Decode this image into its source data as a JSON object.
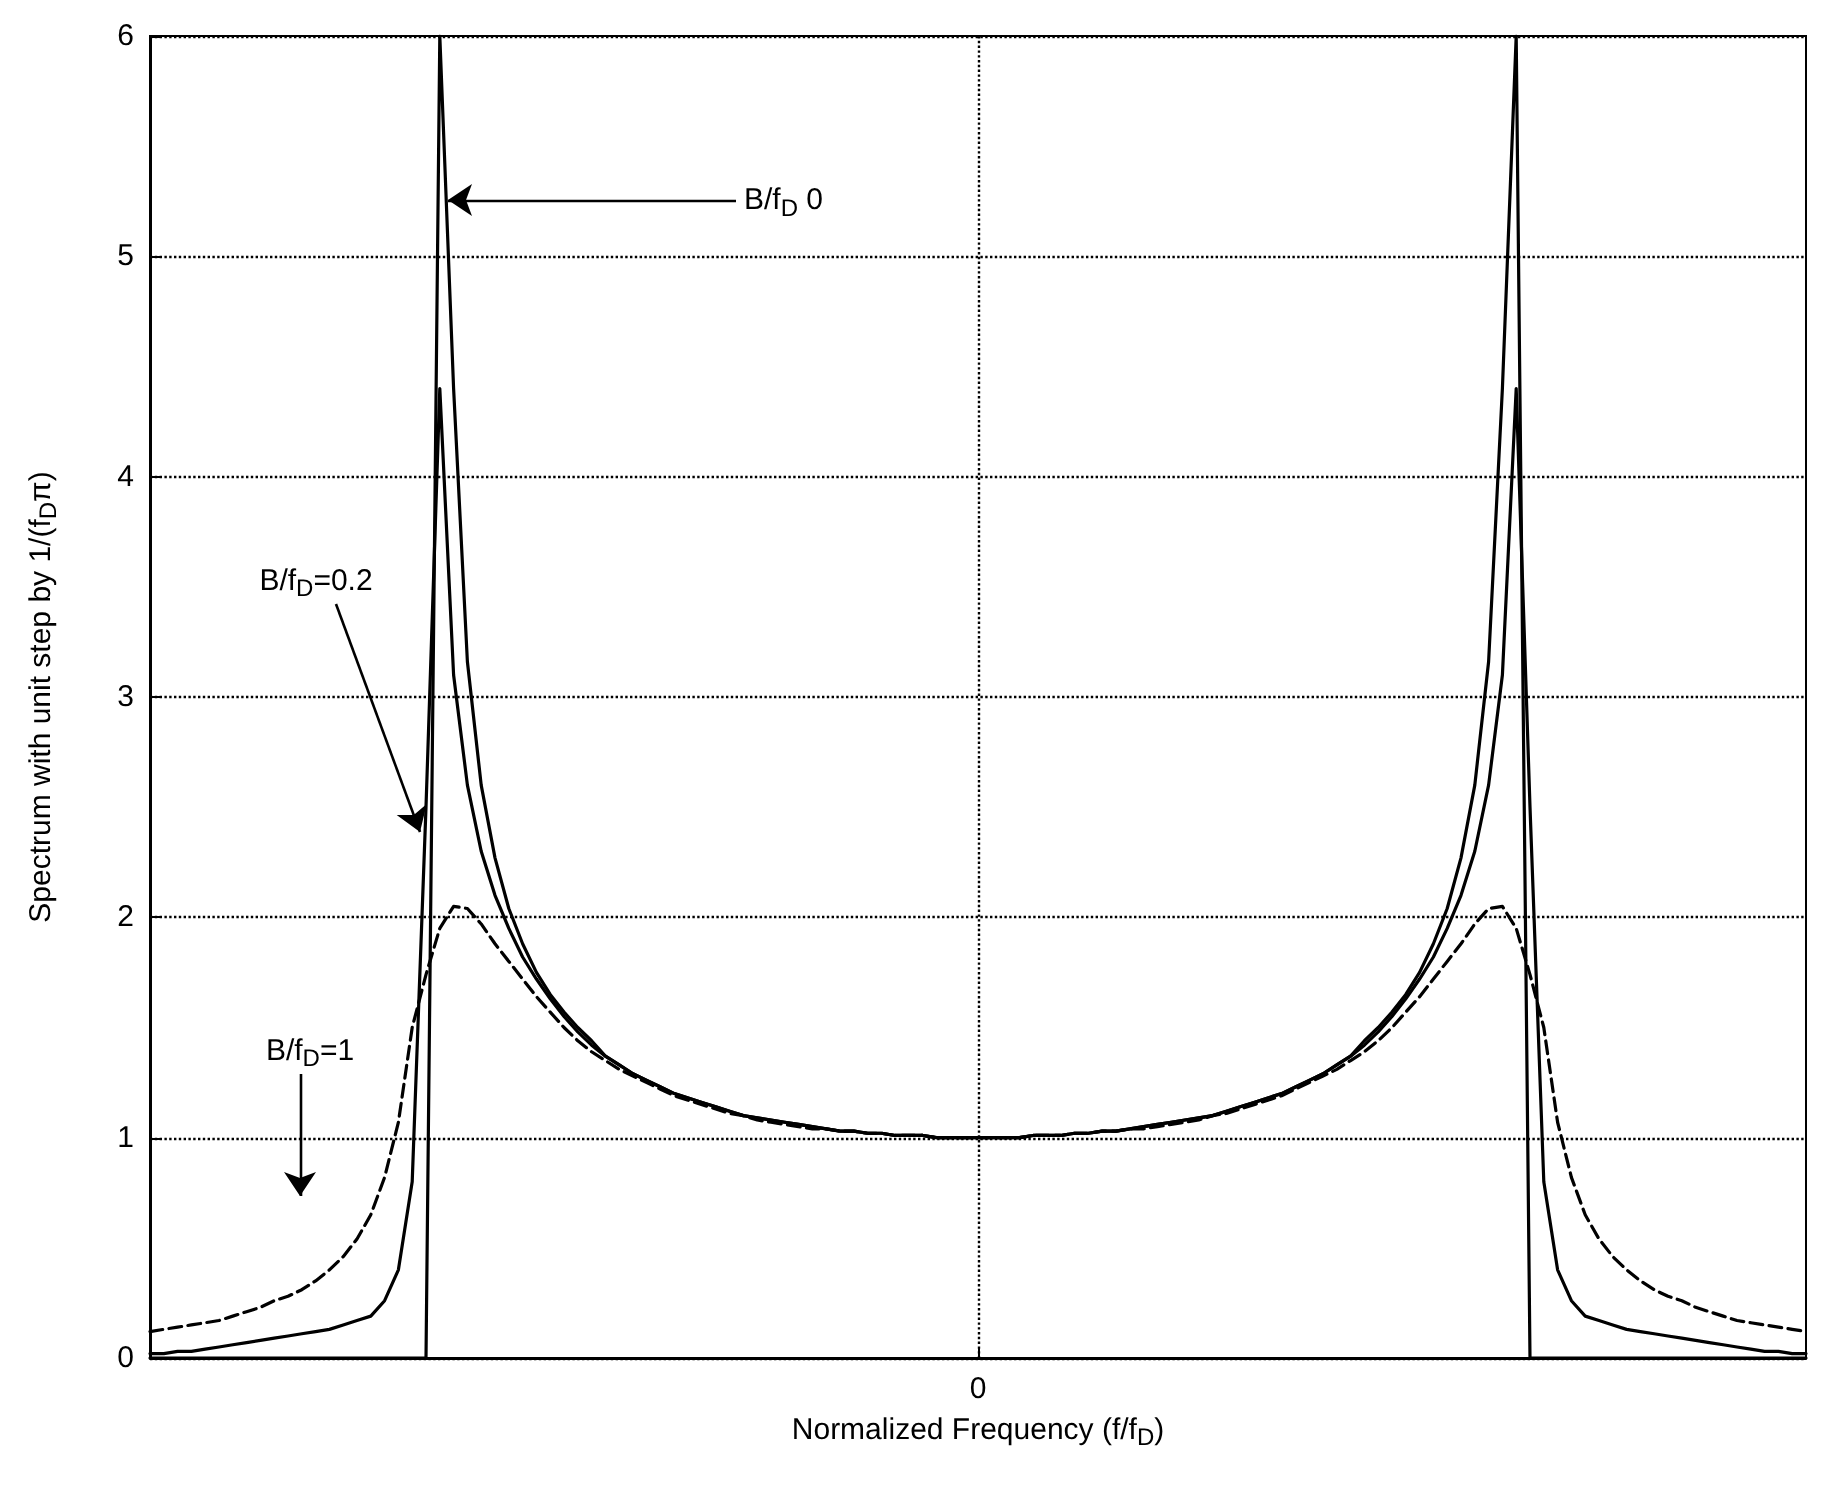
{
  "chart_data": {
    "type": "line",
    "xlabel": "Normalized Frequency (f/f$_{D}$)",
    "ylabel": "Spectrum with unit step by 1/(f$_{D}$π)",
    "categories": [
      null,
      null,
      null,
      null,
      null,
      null,
      null,
      null,
      null,
      null,
      null,
      null,
      null,
      null,
      null,
      null,
      null,
      null,
      null,
      null,
      null,
      null,
      null,
      null,
      null,
      null,
      null,
      null,
      null,
      null,
      null,
      null,
      null,
      null,
      null,
      null,
      null,
      null,
      null,
      null,
      null,
      null,
      null,
      null,
      null,
      null,
      null,
      null,
      null,
      null,
      null,
      null,
      null,
      null,
      null,
      null,
      null,
      null,
      null,
      null,
      "0",
      null,
      null,
      null,
      null,
      null,
      null,
      null,
      null,
      null,
      null,
      null,
      null,
      null,
      null,
      null,
      null,
      null,
      null,
      null,
      null,
      null,
      null,
      null,
      null,
      null,
      null,
      null,
      null,
      null,
      null,
      null,
      null,
      null,
      null,
      null,
      null,
      null,
      null,
      null,
      null,
      null,
      null,
      null,
      null,
      null,
      null,
      null,
      null,
      null,
      null,
      null,
      null,
      null,
      null,
      null,
      null,
      null,
      null,
      null,
      null
    ],
    "ylim": [
      0,
      6
    ],
    "yticks": [
      0,
      1,
      2,
      3,
      4,
      5,
      6
    ],
    "grid": true,
    "marker": "none",
    "series": [
      {
        "color": "#000000",
        "line_style": "solid",
        "values": [
          0,
          0,
          0,
          0,
          0,
          0,
          0,
          0,
          0,
          0,
          0,
          0,
          0,
          0,
          0,
          0,
          0,
          0,
          0,
          0,
          0,
          6,
          4.4,
          3.16,
          2.6,
          2.27,
          2.04,
          1.88,
          1.75,
          1.65,
          1.57,
          1.5,
          1.44,
          1.37,
          1.33,
          1.29,
          1.26,
          1.23,
          1.2,
          1.18,
          1.16,
          1.14,
          1.12,
          1.1,
          1.09,
          1.08,
          1.07,
          1.06,
          1.05,
          1.04,
          1.03,
          1.03,
          1.02,
          1.02,
          1.01,
          1.01,
          1.01,
          1.0,
          1.0,
          1.0,
          1.0,
          1.0,
          1.0,
          1.0,
          1.01,
          1.01,
          1.01,
          1.02,
          1.02,
          1.03,
          1.03,
          1.04,
          1.05,
          1.06,
          1.07,
          1.08,
          1.09,
          1.1,
          1.12,
          1.14,
          1.16,
          1.18,
          1.2,
          1.23,
          1.26,
          1.29,
          1.33,
          1.37,
          1.44,
          1.5,
          1.57,
          1.65,
          1.75,
          1.88,
          2.04,
          2.27,
          2.6,
          3.16,
          4.4,
          6,
          0,
          0,
          0,
          0,
          0,
          0,
          0,
          0,
          0,
          0,
          0,
          0,
          0,
          0,
          0,
          0,
          0,
          0,
          0,
          0,
          0
        ]
      },
      {
        "color": "#000000",
        "line_style": "solid",
        "values": [
          0.02,
          0.02,
          0.03,
          0.03,
          0.04,
          0.05,
          0.06,
          0.07,
          0.08,
          0.09,
          0.1,
          0.11,
          0.12,
          0.13,
          0.15,
          0.17,
          0.19,
          0.26,
          0.4,
          0.8,
          2.5,
          4.4,
          3.1,
          2.6,
          2.3,
          2.1,
          1.95,
          1.82,
          1.72,
          1.63,
          1.55,
          1.48,
          1.42,
          1.37,
          1.33,
          1.29,
          1.26,
          1.23,
          1.2,
          1.18,
          1.16,
          1.14,
          1.12,
          1.1,
          1.09,
          1.08,
          1.07,
          1.06,
          1.05,
          1.04,
          1.03,
          1.03,
          1.02,
          1.02,
          1.01,
          1.01,
          1.01,
          1.0,
          1.0,
          1.0,
          1.0,
          1.0,
          1.0,
          1.0,
          1.01,
          1.01,
          1.01,
          1.02,
          1.02,
          1.03,
          1.03,
          1.04,
          1.05,
          1.06,
          1.07,
          1.08,
          1.09,
          1.1,
          1.12,
          1.14,
          1.16,
          1.18,
          1.2,
          1.23,
          1.26,
          1.29,
          1.33,
          1.37,
          1.42,
          1.48,
          1.55,
          1.63,
          1.72,
          1.82,
          1.95,
          2.1,
          2.3,
          2.6,
          3.1,
          4.4,
          2.5,
          0.8,
          0.4,
          0.26,
          0.19,
          0.17,
          0.15,
          0.13,
          0.12,
          0.11,
          0.1,
          0.09,
          0.08,
          0.07,
          0.06,
          0.05,
          0.04,
          0.03,
          0.03,
          0.02,
          0.02
        ]
      },
      {
        "color": "#000000",
        "line_style": "dashed",
        "values": [
          0.12,
          0.13,
          0.14,
          0.15,
          0.16,
          0.17,
          0.19,
          0.21,
          0.23,
          0.26,
          0.28,
          0.31,
          0.35,
          0.4,
          0.46,
          0.54,
          0.65,
          0.82,
          1.07,
          1.5,
          1.74,
          1.95,
          2.05,
          2.04,
          1.97,
          1.88,
          1.8,
          1.72,
          1.64,
          1.57,
          1.5,
          1.44,
          1.39,
          1.35,
          1.31,
          1.28,
          1.25,
          1.22,
          1.19,
          1.17,
          1.15,
          1.13,
          1.11,
          1.1,
          1.08,
          1.07,
          1.06,
          1.05,
          1.04,
          1.04,
          1.03,
          1.03,
          1.02,
          1.02,
          1.01,
          1.01,
          1.01,
          1.0,
          1.0,
          1.0,
          1.0,
          1.0,
          1.0,
          1.0,
          1.01,
          1.01,
          1.01,
          1.02,
          1.02,
          1.03,
          1.03,
          1.04,
          1.04,
          1.05,
          1.06,
          1.07,
          1.08,
          1.1,
          1.11,
          1.13,
          1.15,
          1.17,
          1.19,
          1.22,
          1.25,
          1.28,
          1.31,
          1.35,
          1.39,
          1.44,
          1.5,
          1.57,
          1.64,
          1.72,
          1.8,
          1.88,
          1.97,
          2.04,
          2.05,
          1.95,
          1.74,
          1.5,
          1.07,
          0.82,
          0.65,
          0.54,
          0.46,
          0.4,
          0.35,
          0.31,
          0.28,
          0.26,
          0.23,
          0.21,
          0.19,
          0.17,
          0.16,
          0.15,
          0.14,
          0.13,
          0.12
        ]
      }
    ],
    "annotations": [
      "B/f$_{D}$ 0",
      "B/f$_{D}$=0.2",
      "B/f$_{D}$=1"
    ]
  }
}
